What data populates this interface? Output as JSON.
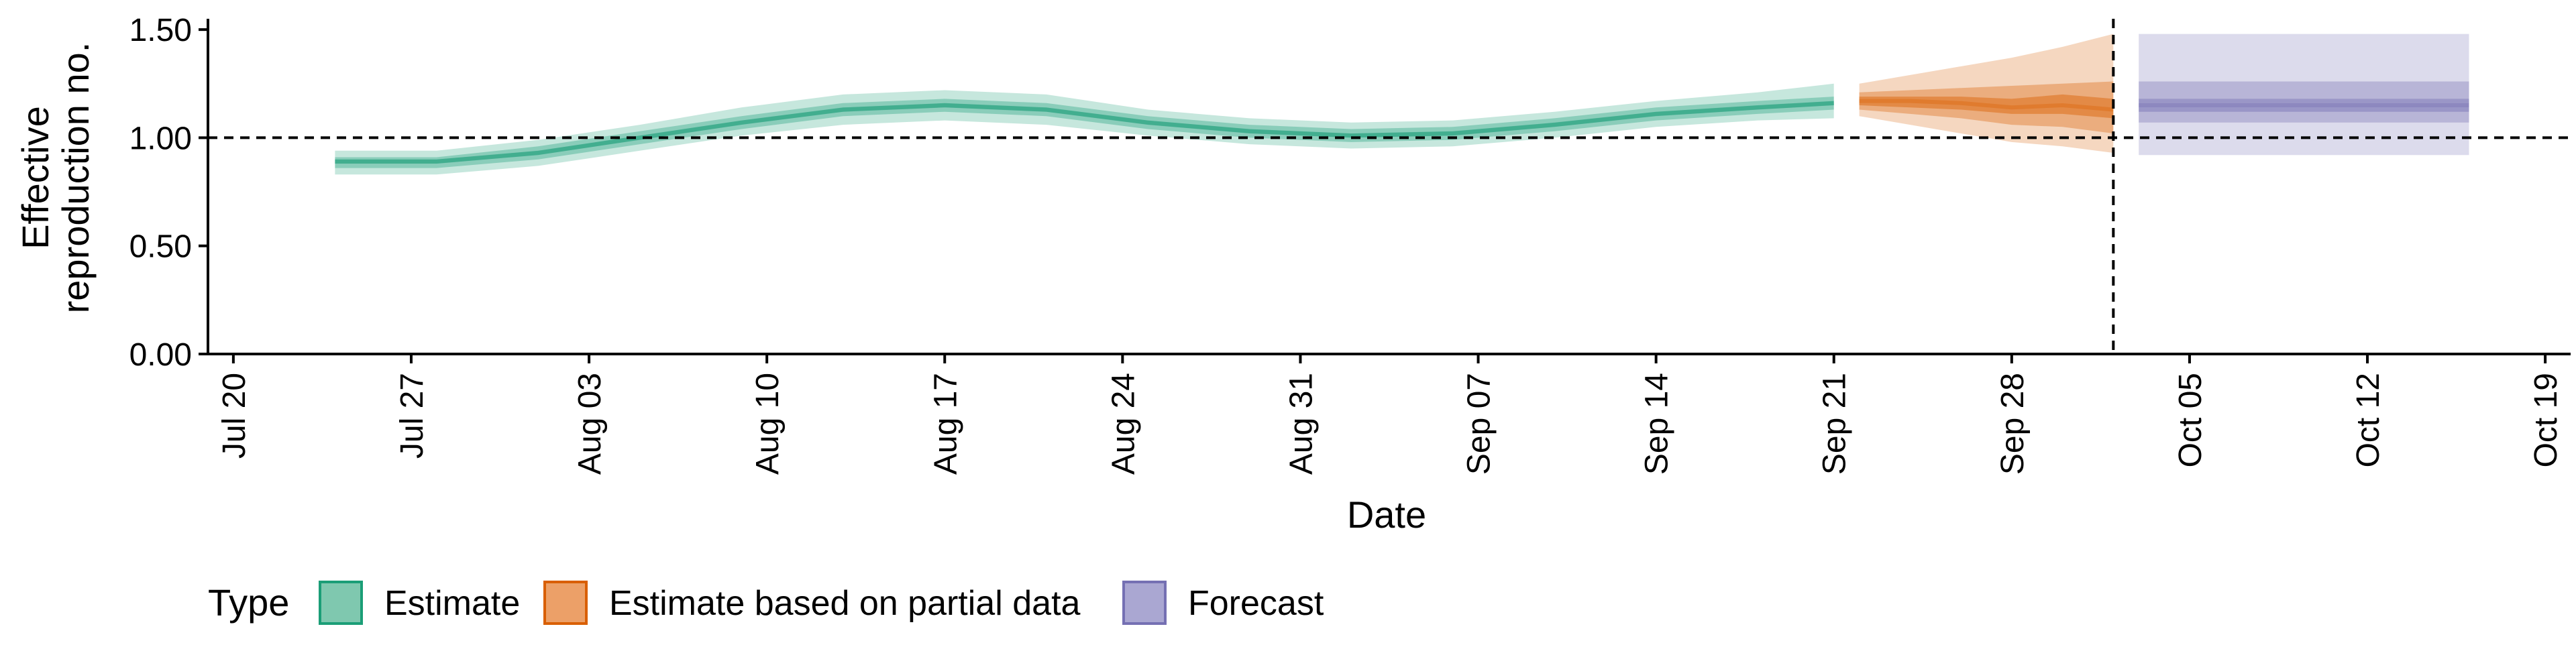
{
  "chart_data": {
    "type": "area",
    "xlabel": "Date",
    "ylabel_lines": [
      "Effective",
      "reproduction no."
    ],
    "ylim": [
      0,
      1.55
    ],
    "xlim": [
      "2020-07-19",
      "2020-10-20"
    ],
    "y_ticks": [
      0,
      0.5,
      1.0,
      1.5
    ],
    "y_tick_labels": [
      "0.00",
      "0.50",
      "1.00",
      "1.50"
    ],
    "x_ticks": [
      "2020-07-20",
      "2020-07-27",
      "2020-08-03",
      "2020-08-10",
      "2020-08-17",
      "2020-08-24",
      "2020-08-31",
      "2020-09-07",
      "2020-09-14",
      "2020-09-21",
      "2020-09-28",
      "2020-10-05",
      "2020-10-12",
      "2020-10-19"
    ],
    "x_tick_labels": [
      "Jul 20",
      "Jul 27",
      "Aug 03",
      "Aug 10",
      "Aug 17",
      "Aug 24",
      "Aug 31",
      "Sep 07",
      "Sep 14",
      "Sep 21",
      "Sep 28",
      "Oct 05",
      "Oct 12",
      "Oct 19"
    ],
    "reference_hline": 1.0,
    "reference_vline": "2020-10-02",
    "series": [
      {
        "name": "Estimate",
        "color": "#1b9e77",
        "x": [
          "2020-07-24",
          "2020-07-28",
          "2020-08-01",
          "2020-08-05",
          "2020-08-09",
          "2020-08-13",
          "2020-08-17",
          "2020-08-21",
          "2020-08-25",
          "2020-08-29",
          "2020-09-02",
          "2020-09-06",
          "2020-09-10",
          "2020-09-14",
          "2020-09-18",
          "2020-09-21"
        ],
        "median": [
          0.89,
          0.89,
          0.93,
          1.0,
          1.07,
          1.13,
          1.15,
          1.13,
          1.07,
          1.03,
          1.01,
          1.02,
          1.06,
          1.11,
          1.14,
          1.16
        ],
        "lower_90": [
          0.83,
          0.83,
          0.87,
          0.94,
          1.01,
          1.06,
          1.08,
          1.06,
          1.01,
          0.97,
          0.95,
          0.96,
          1.0,
          1.05,
          1.08,
          1.09
        ],
        "upper_90": [
          0.94,
          0.94,
          0.99,
          1.06,
          1.14,
          1.2,
          1.22,
          1.2,
          1.13,
          1.09,
          1.07,
          1.08,
          1.12,
          1.17,
          1.21,
          1.25
        ],
        "lower_50": [
          0.86,
          0.86,
          0.9,
          0.97,
          1.04,
          1.1,
          1.12,
          1.1,
          1.04,
          1.0,
          0.98,
          0.99,
          1.03,
          1.08,
          1.11,
          1.13
        ],
        "upper_50": [
          0.91,
          0.91,
          0.96,
          1.03,
          1.1,
          1.16,
          1.18,
          1.16,
          1.1,
          1.06,
          1.04,
          1.05,
          1.09,
          1.14,
          1.17,
          1.19
        ],
        "lower_20": [
          0.88,
          0.88,
          0.92,
          0.99,
          1.06,
          1.12,
          1.14,
          1.12,
          1.06,
          1.02,
          1.0,
          1.01,
          1.05,
          1.1,
          1.13,
          1.15
        ],
        "upper_20": [
          0.9,
          0.9,
          0.94,
          1.01,
          1.08,
          1.14,
          1.16,
          1.14,
          1.08,
          1.04,
          1.02,
          1.03,
          1.07,
          1.12,
          1.15,
          1.17
        ]
      },
      {
        "name": "Estimate based on partial data",
        "color": "#d95f02",
        "x": [
          "2020-09-22",
          "2020-09-24",
          "2020-09-26",
          "2020-09-28",
          "2020-09-30",
          "2020-10-02"
        ],
        "median": [
          1.17,
          1.17,
          1.16,
          1.14,
          1.15,
          1.13
        ],
        "lower_90": [
          1.1,
          1.06,
          1.02,
          0.98,
          0.96,
          0.93
        ],
        "upper_90": [
          1.25,
          1.29,
          1.33,
          1.37,
          1.42,
          1.48
        ],
        "lower_50": [
          1.13,
          1.11,
          1.09,
          1.06,
          1.05,
          1.02
        ],
        "upper_50": [
          1.21,
          1.22,
          1.23,
          1.24,
          1.25,
          1.26
        ],
        "lower_20": [
          1.15,
          1.14,
          1.13,
          1.11,
          1.11,
          1.09
        ],
        "upper_20": [
          1.19,
          1.19,
          1.19,
          1.18,
          1.2,
          1.18
        ]
      },
      {
        "name": "Forecast",
        "color": "#7570b3",
        "x": [
          "2020-10-03",
          "2020-10-16"
        ],
        "median": [
          1.15,
          1.15
        ],
        "lower_90": [
          0.92,
          0.92
        ],
        "upper_90": [
          1.48,
          1.48
        ],
        "lower_50": [
          1.07,
          1.07
        ],
        "upper_50": [
          1.26,
          1.26
        ],
        "lower_20": [
          1.12,
          1.12
        ],
        "upper_20": [
          1.18,
          1.18
        ]
      }
    ],
    "legend": {
      "title": "Type",
      "placement": "bottom-left",
      "entries": [
        {
          "label": "Estimate",
          "fill": "#7fc8af",
          "border": "#1b9e77"
        },
        {
          "label": "Estimate based on partial data",
          "fill": "#eca068",
          "border": "#d95f02"
        },
        {
          "label": "Forecast",
          "fill": "#aaa7d2",
          "border": "#7570b3"
        }
      ]
    }
  }
}
